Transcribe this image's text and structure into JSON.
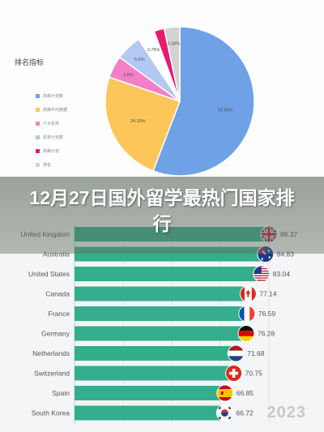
{
  "title": "12月27日国外留学最热门国家排行",
  "pie": {
    "legend_title": "排名指标",
    "legend_items": [
      {
        "label": "高峰计划数",
        "color": "#6fa1e6"
      },
      {
        "label": "高峰平均数据",
        "color": "#fcc65a"
      },
      {
        "label": "十大机构",
        "color": "#f47ec8"
      },
      {
        "label": "名校计划数",
        "color": "#b3c8f2"
      },
      {
        "label": "高峰计划",
        "color": "#e8196e"
      },
      {
        "label": "排名",
        "color": "#d3d3d3"
      }
    ],
    "chart_data": {
      "type": "pie",
      "slices": [
        {
          "value": 55.85,
          "label": "55.85%",
          "color": "#6fa1e6"
        },
        {
          "value": 24.39,
          "label": "24.39%",
          "color": "#fcc65a"
        },
        {
          "value": 4.8,
          "label": "4.8%",
          "color": "#f47ec8"
        },
        {
          "value": 5.6,
          "label": "5.6%",
          "color": "#b3c8f2"
        },
        {
          "value": 3.78,
          "label": "3.78%",
          "color": "#ffffff"
        },
        {
          "value": 2.2,
          "label": "",
          "color": "#e8196e"
        },
        {
          "value": 3.38,
          "label": "3.38%",
          "color": "#d3d3d3"
        }
      ]
    }
  },
  "bars": {
    "year": "2023",
    "chart_data": {
      "type": "bar",
      "orientation": "horizontal",
      "categories": [
        "United Kingdom",
        "Australia",
        "United States",
        "Canada",
        "France",
        "Germany",
        "Netherlands",
        "Switzerland",
        "Spain",
        "South Korea"
      ],
      "values": [
        86.37,
        84.83,
        83.04,
        77.14,
        76.59,
        76.28,
        71.68,
        70.75,
        66.85,
        66.72
      ],
      "value_labels": [
        "86.37",
        "84.83",
        "83.04",
        "77.14",
        "76.59",
        "76.28",
        "71.68",
        "70.75",
        "66.85",
        "66.72"
      ],
      "bar_color": "#34ae8c",
      "grid": true
    }
  }
}
